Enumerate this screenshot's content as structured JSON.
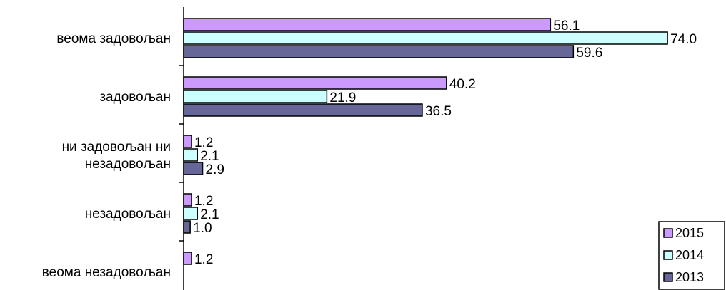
{
  "chart_data": {
    "type": "bar",
    "orientation": "horizontal",
    "categories": [
      [
        "веома задовољан"
      ],
      [
        "задовољан"
      ],
      [
        "ни задовољан ни",
        "незадовољан"
      ],
      [
        "незадовољан"
      ],
      [
        "веома незадовољан"
      ]
    ],
    "series": [
      {
        "name": "2015",
        "color": "#CC99FF",
        "values": [
          56.1,
          40.2,
          1.2,
          1.2,
          1.2
        ],
        "labels": [
          "56.1",
          "40.2",
          "1.2",
          "1.2",
          "1.2"
        ]
      },
      {
        "name": "2014",
        "color": "#CCFFFF",
        "values": [
          74.0,
          21.9,
          2.1,
          2.1,
          null
        ],
        "labels": [
          "74.0",
          "21.9",
          "2.1",
          "2.1",
          ""
        ]
      },
      {
        "name": "2013",
        "color": "#666699",
        "values": [
          59.6,
          36.5,
          2.9,
          1.0,
          null
        ],
        "labels": [
          "59.6",
          "36.5",
          "2.9",
          "1.0",
          ""
        ]
      }
    ],
    "xlim": [
      0,
      80
    ],
    "legend_position": "bottom-right",
    "grid": false,
    "title": "",
    "xlabel": "",
    "ylabel": ""
  }
}
